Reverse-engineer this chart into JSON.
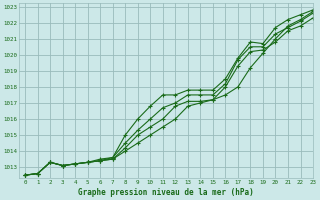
{
  "title": "Graphe pression niveau de la mer (hPa)",
  "bg_color": "#cce8e8",
  "plot_bg_color": "#cce8e8",
  "grid_color": "#99bbbb",
  "line_color": "#1a6b1a",
  "xlim": [
    -0.5,
    23
  ],
  "ylim": [
    1012.3,
    1023.2
  ],
  "yticks": [
    1013,
    1014,
    1015,
    1016,
    1017,
    1018,
    1019,
    1020,
    1021,
    1022,
    1023
  ],
  "xticks": [
    0,
    1,
    2,
    3,
    4,
    5,
    6,
    7,
    8,
    9,
    10,
    11,
    12,
    13,
    14,
    15,
    16,
    17,
    18,
    19,
    20,
    21,
    22,
    23
  ],
  "series": [
    [
      1012.5,
      1012.6,
      1013.3,
      1013.1,
      1013.2,
      1013.3,
      1013.4,
      1013.5,
      1014.0,
      1014.5,
      1015.0,
      1015.5,
      1016.0,
      1016.8,
      1017.0,
      1017.2,
      1017.5,
      1018.0,
      1019.2,
      1020.1,
      1021.0,
      1021.8,
      1022.2,
      1022.7
    ],
    [
      1012.5,
      1012.6,
      1013.3,
      1013.1,
      1013.2,
      1013.3,
      1013.4,
      1013.5,
      1014.2,
      1015.0,
      1015.5,
      1016.0,
      1016.8,
      1017.1,
      1017.1,
      1017.2,
      1018.0,
      1019.3,
      1020.2,
      1020.3,
      1020.8,
      1021.5,
      1021.8,
      1022.3
    ],
    [
      1012.5,
      1012.6,
      1013.3,
      1013.1,
      1013.2,
      1013.3,
      1013.4,
      1013.6,
      1014.5,
      1015.3,
      1016.0,
      1016.7,
      1017.0,
      1017.5,
      1017.5,
      1017.5,
      1018.2,
      1019.7,
      1020.5,
      1020.5,
      1021.3,
      1021.7,
      1022.1,
      1022.6
    ],
    [
      1012.5,
      1012.6,
      1013.3,
      1013.1,
      1013.2,
      1013.3,
      1013.5,
      1013.6,
      1015.0,
      1016.0,
      1016.8,
      1017.5,
      1017.5,
      1017.8,
      1017.8,
      1017.8,
      1018.5,
      1019.8,
      1020.8,
      1020.7,
      1021.7,
      1022.2,
      1022.5,
      1022.8
    ]
  ]
}
